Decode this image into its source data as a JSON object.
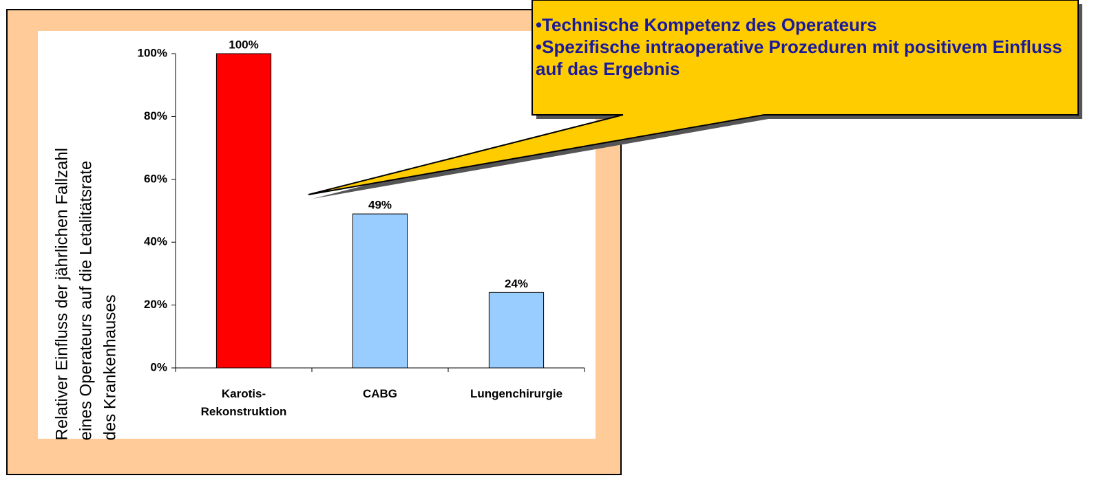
{
  "chart_data": {
    "type": "bar",
    "ylabel": "Relativer Einfluss der jährlichen Fallzahl\neines Operateurs auf die Letalitätsrate\ndes Krankenhauses",
    "categories": [
      "Karotis-\nRekonstruktion",
      "CABG",
      "Lungenchirurgie"
    ],
    "values": [
      100,
      49,
      24
    ],
    "value_labels": [
      "100%",
      "49%",
      "24%"
    ],
    "colors": [
      "#ff0000",
      "#99ccff",
      "#99ccff"
    ],
    "ylim": [
      0,
      100
    ],
    "yticks": [
      {
        "value": 0,
        "label": "0%"
      },
      {
        "value": 20,
        "label": "20%"
      },
      {
        "value": 40,
        "label": "40%"
      },
      {
        "value": 60,
        "label": "60%"
      },
      {
        "value": 80,
        "label": "80%"
      },
      {
        "value": 100,
        "label": "100%"
      }
    ],
    "grid": false,
    "annotation": [
      "•Technische Kompetenz des Operateurs",
      "•Spezifische intraoperative Prozeduren mit positivem Einfluss auf das Ergebnis"
    ]
  }
}
